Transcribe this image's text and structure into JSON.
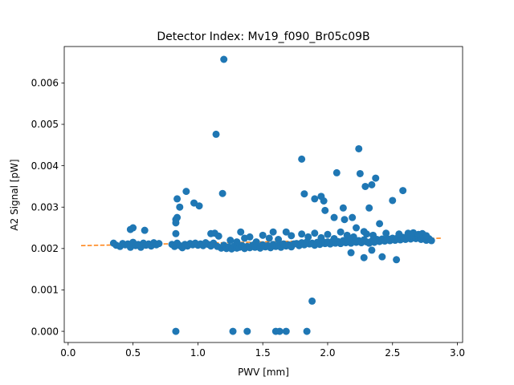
{
  "chart_data": {
    "type": "scatter",
    "title": "Detector Index: Mv19_f090_Br05c09B",
    "xlabel": "PWV [mm]",
    "ylabel": "A2 Signal [pW]",
    "xlim": [
      -0.03,
      3.04
    ],
    "ylim": [
      -0.00027,
      0.00688
    ],
    "xticks": [
      0.0,
      0.5,
      1.0,
      1.5,
      2.0,
      2.5,
      3.0
    ],
    "xtick_labels": [
      "0.0",
      "0.5",
      "1.0",
      "1.5",
      "2.0",
      "2.5",
      "3.0"
    ],
    "yticks": [
      0.0,
      0.001,
      0.002,
      0.003,
      0.004,
      0.005,
      0.006
    ],
    "ytick_labels": [
      "0.000",
      "0.001",
      "0.002",
      "0.003",
      "0.004",
      "0.005",
      "0.006"
    ],
    "grid": false,
    "legend": "none",
    "colors": {
      "points": "#1f77b4",
      "fit": "#ff7f0e"
    },
    "series": [
      {
        "kind": "points",
        "points": [
          [
            0.35,
            0.00213
          ],
          [
            0.37,
            0.00208
          ],
          [
            0.4,
            0.00205
          ],
          [
            0.42,
            0.00212
          ],
          [
            0.44,
            0.00209
          ],
          [
            0.46,
            0.00211
          ],
          [
            0.48,
            0.00203
          ],
          [
            0.5,
            0.00215
          ],
          [
            0.52,
            0.00207
          ],
          [
            0.54,
            0.0021
          ],
          [
            0.56,
            0.00203
          ],
          [
            0.58,
            0.00213
          ],
          [
            0.6,
            0.00208
          ],
          [
            0.62,
            0.00211
          ],
          [
            0.64,
            0.00206
          ],
          [
            0.66,
            0.00214
          ],
          [
            0.68,
            0.00209
          ],
          [
            0.7,
            0.00212
          ],
          [
            0.48,
            0.00246
          ],
          [
            0.5,
            0.0025
          ],
          [
            0.59,
            0.00244
          ],
          [
            0.8,
            0.0021
          ],
          [
            0.82,
            0.00205
          ],
          [
            0.84,
            0.00213
          ],
          [
            0.86,
            0.00207
          ],
          [
            0.88,
            0.00202
          ],
          [
            0.9,
            0.0021
          ],
          [
            0.92,
            0.00206
          ],
          [
            0.94,
            0.00212
          ],
          [
            0.96,
            0.00209
          ],
          [
            0.98,
            0.00213
          ],
          [
            1.0,
            0.00208
          ],
          [
            1.02,
            0.00211
          ],
          [
            1.04,
            0.00207
          ],
          [
            1.06,
            0.00214
          ],
          [
            1.08,
            0.0021
          ],
          [
            1.1,
            0.00206
          ],
          [
            1.12,
            0.00213
          ],
          [
            0.83,
            0.00236
          ],
          [
            0.83,
            0.00262
          ],
          [
            0.83,
            0.0027
          ],
          [
            0.84,
            0.00275
          ],
          [
            0.84,
            0.0032
          ],
          [
            0.86,
            0.003
          ],
          [
            0.91,
            0.00338
          ],
          [
            0.97,
            0.0031
          ],
          [
            1.01,
            0.00303
          ],
          [
            1.1,
            0.00236
          ],
          [
            1.13,
            0.00237
          ],
          [
            1.16,
            0.0023
          ],
          [
            1.19,
            0.00333
          ],
          [
            1.14,
            0.00476
          ],
          [
            1.2,
            0.00657
          ],
          [
            1.15,
            0.00205
          ],
          [
            1.18,
            0.00201
          ],
          [
            1.2,
            0.00208
          ],
          [
            1.22,
            0.002
          ],
          [
            1.24,
            0.00204
          ],
          [
            1.26,
            0.00199
          ],
          [
            1.28,
            0.00206
          ],
          [
            1.3,
            0.00201
          ],
          [
            1.32,
            0.00203
          ],
          [
            1.34,
            0.00207
          ],
          [
            1.36,
            0.002
          ],
          [
            1.38,
            0.00205
          ],
          [
            1.4,
            0.00202
          ],
          [
            1.42,
            0.00208
          ],
          [
            1.44,
            0.00203
          ],
          [
            1.46,
            0.00206
          ],
          [
            1.48,
            0.00201
          ],
          [
            1.5,
            0.00209
          ],
          [
            1.52,
            0.00204
          ],
          [
            1.54,
            0.00207
          ],
          [
            1.56,
            0.00202
          ],
          [
            1.58,
            0.0021
          ],
          [
            1.6,
            0.00205
          ],
          [
            1.62,
            0.00208
          ],
          [
            1.64,
            0.00203
          ],
          [
            1.66,
            0.00211
          ],
          [
            1.68,
            0.00206
          ],
          [
            1.7,
            0.00209
          ],
          [
            1.72,
            0.00204
          ],
          [
            1.74,
            0.00211
          ],
          [
            1.25,
            0.0022
          ],
          [
            1.3,
            0.00216
          ],
          [
            1.33,
            0.0024
          ],
          [
            1.36,
            0.00225
          ],
          [
            1.4,
            0.00228
          ],
          [
            1.45,
            0.00216
          ],
          [
            1.5,
            0.00232
          ],
          [
            1.55,
            0.00225
          ],
          [
            1.58,
            0.0024
          ],
          [
            1.62,
            0.00222
          ],
          [
            1.68,
            0.0024
          ],
          [
            1.72,
            0.00231
          ],
          [
            1.76,
            0.00212
          ],
          [
            1.78,
            0.00207
          ],
          [
            1.8,
            0.00214
          ],
          [
            1.82,
            0.00209
          ],
          [
            1.84,
            0.00216
          ],
          [
            1.86,
            0.00211
          ],
          [
            1.88,
            0.00213
          ],
          [
            1.9,
            0.00208
          ],
          [
            1.92,
            0.00215
          ],
          [
            1.94,
            0.0021
          ],
          [
            1.96,
            0.00217
          ],
          [
            1.98,
            0.00212
          ],
          [
            2.0,
            0.00216
          ],
          [
            2.02,
            0.00211
          ],
          [
            2.04,
            0.00218
          ],
          [
            2.06,
            0.00213
          ],
          [
            2.08,
            0.00217
          ],
          [
            2.1,
            0.00212
          ],
          [
            2.12,
            0.00219
          ],
          [
            2.14,
            0.00214
          ],
          [
            2.16,
            0.00218
          ],
          [
            2.18,
            0.00213
          ],
          [
            2.2,
            0.0022
          ],
          [
            2.22,
            0.00215
          ],
          [
            2.24,
            0.00219
          ],
          [
            2.26,
            0.00214
          ],
          [
            2.28,
            0.00221
          ],
          [
            2.3,
            0.00216
          ],
          [
            1.8,
            0.00235
          ],
          [
            1.85,
            0.00228
          ],
          [
            1.9,
            0.00237
          ],
          [
            1.95,
            0.00226
          ],
          [
            2.0,
            0.00234
          ],
          [
            2.05,
            0.00224
          ],
          [
            2.1,
            0.0024
          ],
          [
            2.15,
            0.00232
          ],
          [
            2.2,
            0.00228
          ],
          [
            2.22,
            0.0025
          ],
          [
            2.28,
            0.00241
          ],
          [
            2.3,
            0.00235
          ],
          [
            1.8,
            0.00416
          ],
          [
            1.82,
            0.00332
          ],
          [
            1.9,
            0.0032
          ],
          [
            1.95,
            0.00326
          ],
          [
            1.97,
            0.00315
          ],
          [
            1.98,
            0.00292
          ],
          [
            2.05,
            0.00275
          ],
          [
            2.07,
            0.00383
          ],
          [
            2.12,
            0.00298
          ],
          [
            2.13,
            0.0027
          ],
          [
            2.16,
            0.0022
          ],
          [
            2.19,
            0.00275
          ],
          [
            2.24,
            0.00441
          ],
          [
            2.25,
            0.00381
          ],
          [
            2.29,
            0.0035
          ],
          [
            2.32,
            0.00298
          ],
          [
            2.34,
            0.00354
          ],
          [
            2.37,
            0.0037
          ],
          [
            2.4,
            0.0026
          ],
          [
            2.5,
            0.00316
          ],
          [
            2.58,
            0.0034
          ],
          [
            2.32,
            0.00213
          ],
          [
            2.34,
            0.00218
          ],
          [
            2.36,
            0.00215
          ],
          [
            2.38,
            0.00222
          ],
          [
            2.4,
            0.00217
          ],
          [
            2.42,
            0.00223
          ],
          [
            2.44,
            0.00218
          ],
          [
            2.46,
            0.00224
          ],
          [
            2.48,
            0.00219
          ],
          [
            2.5,
            0.00225
          ],
          [
            2.52,
            0.0022
          ],
          [
            2.54,
            0.00226
          ],
          [
            2.56,
            0.00221
          ],
          [
            2.58,
            0.00227
          ],
          [
            2.6,
            0.00222
          ],
          [
            2.62,
            0.00228
          ],
          [
            2.64,
            0.00223
          ],
          [
            2.66,
            0.00229
          ],
          [
            2.68,
            0.00224
          ],
          [
            2.7,
            0.00228
          ],
          [
            2.72,
            0.00222
          ],
          [
            2.74,
            0.00226
          ],
          [
            2.76,
            0.0022
          ],
          [
            2.78,
            0.00224
          ],
          [
            2.8,
            0.00219
          ],
          [
            2.35,
            0.00232
          ],
          [
            2.45,
            0.00237
          ],
          [
            2.55,
            0.00235
          ],
          [
            2.62,
            0.00237
          ],
          [
            2.66,
            0.00238
          ],
          [
            2.7,
            0.00234
          ],
          [
            2.73,
            0.00236
          ],
          [
            2.76,
            0.00231
          ],
          [
            2.18,
            0.0019
          ],
          [
            2.28,
            0.00178
          ],
          [
            2.34,
            0.00196
          ],
          [
            2.42,
            0.0018
          ],
          [
            2.53,
            0.00173
          ],
          [
            1.88,
            0.00073
          ],
          [
            0.83,
            0.0
          ],
          [
            1.27,
            0.0
          ],
          [
            1.38,
            0.0
          ],
          [
            1.6,
            0.0
          ],
          [
            1.63,
            0.0
          ],
          [
            1.68,
            0.0
          ],
          [
            1.84,
            0.0
          ]
        ]
      },
      {
        "kind": "fit",
        "style": "dashed",
        "x": [
          0.1,
          2.88
        ],
        "y": [
          0.00207,
          0.00225
        ]
      }
    ]
  }
}
